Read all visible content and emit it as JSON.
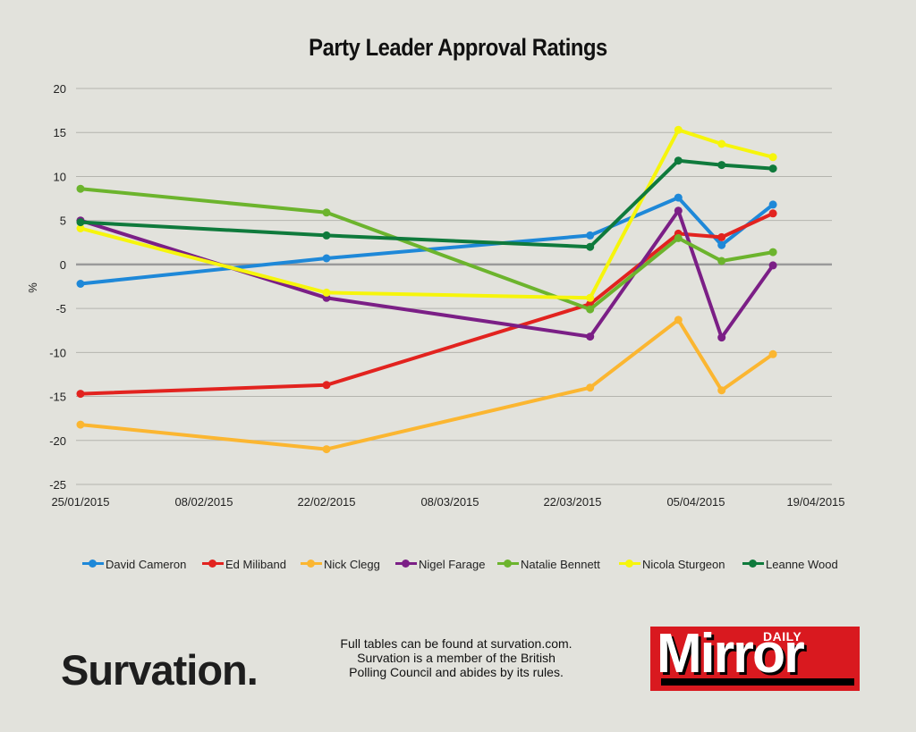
{
  "chart_data": {
    "type": "line",
    "title": "Party Leader Approval Ratings",
    "ylabel": "%",
    "xlabel": "",
    "ylim": [
      -25,
      20
    ],
    "yticks": [
      20,
      15,
      10,
      5,
      0,
      -5,
      -10,
      -15,
      -20,
      -25
    ],
    "xlim": [
      "25/01/2015",
      "19/04/2015"
    ],
    "xticks": [
      "25/01/2015",
      "08/02/2015",
      "22/02/2015",
      "08/03/2015",
      "22/03/2015",
      "05/04/2015",
      "19/04/2015"
    ],
    "grid": "horizontal",
    "legend_position": "bottom",
    "series": [
      {
        "name": "David Cameron",
        "color": "#1e88d8",
        "points": [
          [
            "25/01/2015",
            -2.2
          ],
          [
            "22/02/2015",
            0.7
          ],
          [
            "24/03/2015",
            3.3
          ],
          [
            "03/04/2015",
            7.6
          ],
          [
            "08/04/2015",
            2.2
          ],
          [
            "14/04/2015",
            6.8
          ]
        ]
      },
      {
        "name": "Ed Miliband",
        "color": "#e2231f",
        "points": [
          [
            "25/01/2015",
            -14.7
          ],
          [
            "22/02/2015",
            -13.7
          ],
          [
            "24/03/2015",
            -4.5
          ],
          [
            "03/04/2015",
            3.5
          ],
          [
            "08/04/2015",
            3.1
          ],
          [
            "14/04/2015",
            5.8
          ]
        ]
      },
      {
        "name": "Nick Clegg",
        "color": "#fbb631",
        "points": [
          [
            "25/01/2015",
            -18.2
          ],
          [
            "22/02/2015",
            -21.0
          ],
          [
            "24/03/2015",
            -14.0
          ],
          [
            "03/04/2015",
            -6.3
          ],
          [
            "08/04/2015",
            -14.3
          ],
          [
            "14/04/2015",
            -10.2
          ]
        ]
      },
      {
        "name": "Nigel Farage",
        "color": "#7b1f86",
        "points": [
          [
            "25/01/2015",
            5.0
          ],
          [
            "22/02/2015",
            -3.8
          ],
          [
            "24/03/2015",
            -8.2
          ],
          [
            "03/04/2015",
            6.1
          ],
          [
            "08/04/2015",
            -8.3
          ],
          [
            "14/04/2015",
            -0.1
          ]
        ]
      },
      {
        "name": "Natalie Bennett",
        "color": "#6cb42d",
        "points": [
          [
            "25/01/2015",
            8.6
          ],
          [
            "22/02/2015",
            5.9
          ],
          [
            "24/03/2015",
            -5.1
          ],
          [
            "03/04/2015",
            3.0
          ],
          [
            "08/04/2015",
            0.4
          ],
          [
            "14/04/2015",
            1.4
          ]
        ]
      },
      {
        "name": "Nicola Sturgeon",
        "color": "#f6f50c",
        "points": [
          [
            "25/01/2015",
            4.1
          ],
          [
            "22/02/2015",
            -3.2
          ],
          [
            "24/03/2015",
            -3.8
          ],
          [
            "03/04/2015",
            15.3
          ],
          [
            "08/04/2015",
            13.7
          ],
          [
            "14/04/2015",
            12.2
          ]
        ]
      },
      {
        "name": "Leanne Wood",
        "color": "#0f7a3c",
        "points": [
          [
            "25/01/2015",
            4.8
          ],
          [
            "22/02/2015",
            3.3
          ],
          [
            "24/03/2015",
            2.0
          ],
          [
            "03/04/2015",
            11.8
          ],
          [
            "08/04/2015",
            11.3
          ],
          [
            "14/04/2015",
            10.9
          ]
        ]
      }
    ]
  },
  "footer": {
    "brand": "Survation.",
    "note_lines": [
      "Full tables can be found at survation.com.",
      "Survation is a member of the British",
      "Polling Council and abides by its rules."
    ],
    "publisher_daily": "DAILY",
    "publisher_name": "Mirror",
    "publisher_colors": {
      "background": "#d9191f",
      "text": "#ffffff",
      "shadow": "#000000"
    }
  }
}
